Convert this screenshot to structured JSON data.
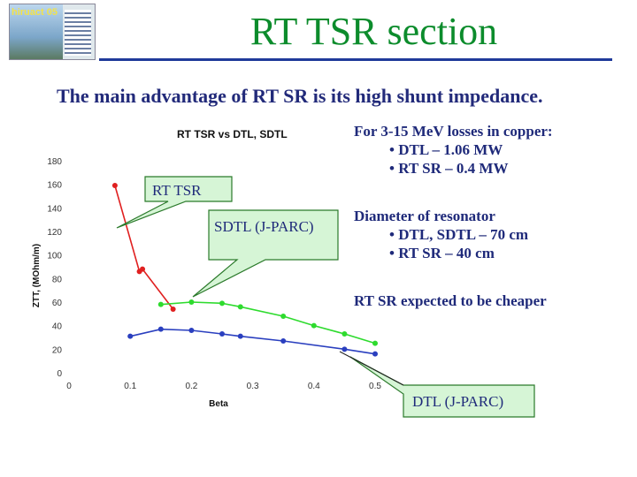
{
  "slide": {
    "title": "RT TSR section",
    "subtitle": "The main advantage of RT SR is its high shunt impedance."
  },
  "logo": {
    "text": "hiruact 05",
    "name": "conference-logo"
  },
  "chart_data": {
    "type": "line",
    "title": "RT TSR vs DTL, SDTL",
    "xlabel": "Beta",
    "ylabel": "ZTT, (MOhm/m)",
    "xlim": [
      0,
      0.5
    ],
    "ylim": [
      0,
      180
    ],
    "xticks": [
      "0",
      "0.1",
      "0.2",
      "0.3",
      "0.4",
      "0.5"
    ],
    "yticks": [
      "0",
      "20",
      "40",
      "60",
      "80",
      "100",
      "120",
      "140",
      "160",
      "180"
    ],
    "grid": false,
    "legend": "none",
    "series": [
      {
        "color": "#e02020",
        "x": [
          0.075,
          0.115,
          0.12,
          0.17
        ],
        "y": [
          159,
          86,
          88,
          54
        ]
      },
      {
        "color": "#2edb2e",
        "x": [
          0.15,
          0.2,
          0.25,
          0.28,
          0.35,
          0.4,
          0.45,
          0.5
        ],
        "y": [
          58,
          60,
          59,
          56,
          48,
          40,
          33,
          25
        ]
      },
      {
        "color": "#2a3fbf",
        "x": [
          0.1,
          0.15,
          0.2,
          0.25,
          0.28,
          0.35,
          0.45,
          0.5
        ],
        "y": [
          31,
          37,
          36,
          33,
          31,
          27,
          20,
          16
        ]
      }
    ]
  },
  "callouts": {
    "rt_tsr": "RT TSR",
    "sdtl": "SDTL (J-PARC)",
    "dtl": "DTL (J-PARC)"
  },
  "info": {
    "losses_heading": "For 3-15 MeV losses in copper:",
    "losses_dtl": "• DTL – 1.06 MW",
    "losses_rtsr": "• RT SR – 0.4 MW",
    "diameter_heading": "Diameter of resonator",
    "diameter_dtl": "• DTL, SDTL – 70 cm",
    "diameter_rtsr": "• RT SR – 40 cm",
    "cost_note": "RT SR expected to be cheaper"
  },
  "colors": {
    "title": "#0c8c2c",
    "text": "#1f2a7a",
    "callout_fill": "#d6f5d6",
    "callout_border": "#2b7a2b"
  }
}
